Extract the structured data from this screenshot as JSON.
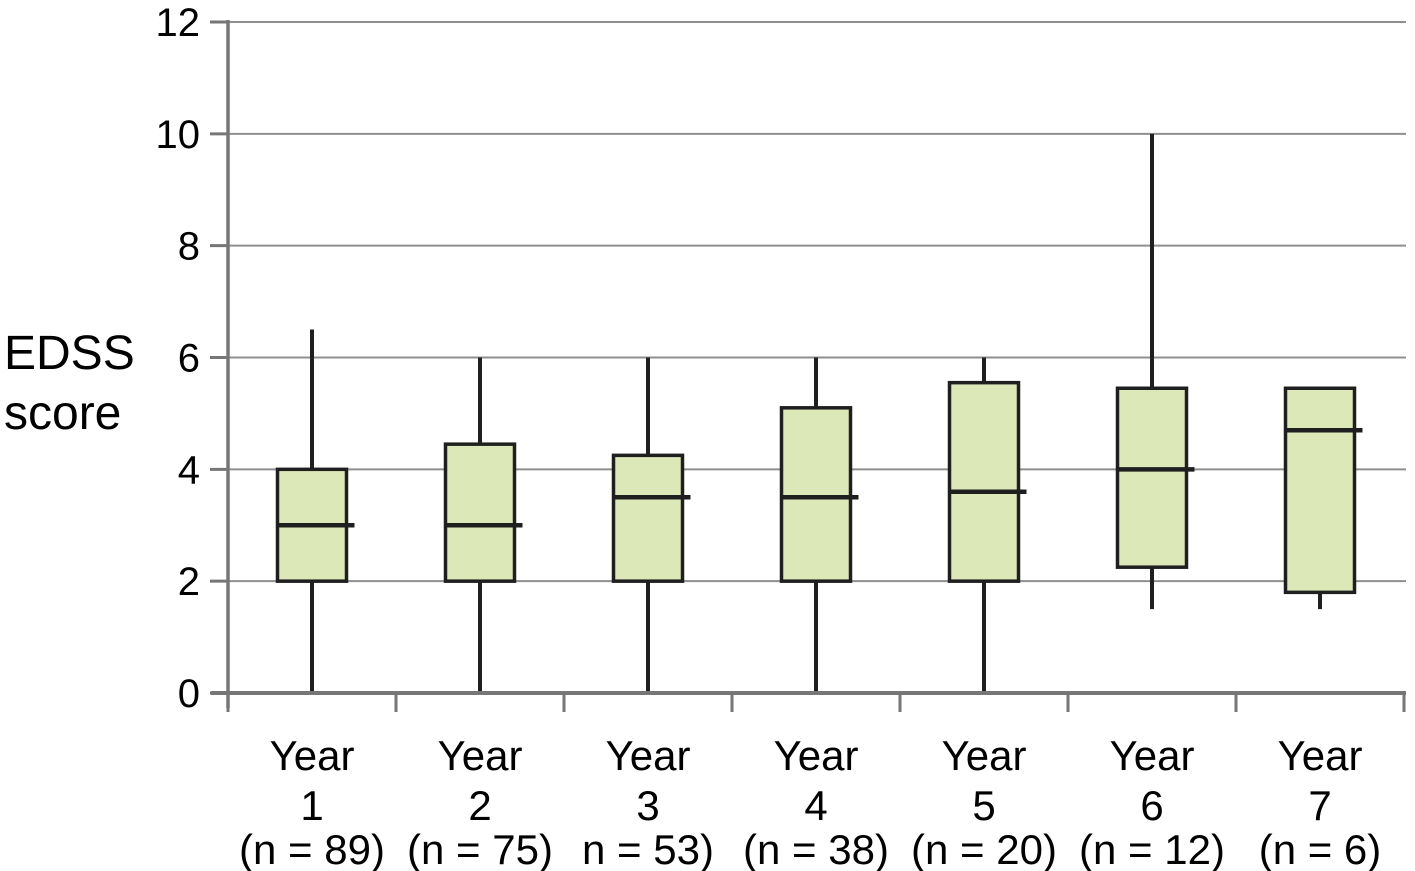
{
  "chart_data": {
    "type": "boxplot",
    "title": "",
    "ylabel": "EDSS score",
    "ylabel_line1": "EDSS",
    "ylabel_line2": "score",
    "xlabel": "",
    "ylim": [
      0,
      12
    ],
    "yticks": [
      0,
      2,
      4,
      6,
      8,
      10,
      12
    ],
    "grid": "horizontal",
    "legend": "none",
    "categories": [
      {
        "line1": "Year",
        "line2": "1",
        "line3": "(n = 89)"
      },
      {
        "line1": "Year",
        "line2": "2",
        "line3": "(n = 75)"
      },
      {
        "line1": "Year",
        "line2": "3",
        "line3": "n = 53)"
      },
      {
        "line1": "Year",
        "line2": "4",
        "line3": "(n = 38)"
      },
      {
        "line1": "Year",
        "line2": "5",
        "line3": "(n = 20)"
      },
      {
        "line1": "Year",
        "line2": "6",
        "line3": "(n = 12)"
      },
      {
        "line1": "Year",
        "line2": "7",
        "line3": "(n = 6)"
      }
    ],
    "boxes": [
      {
        "label": "Year 1",
        "n": 89,
        "whisker_low": 0,
        "q1": 2.0,
        "median": 3.0,
        "q3": 4.0,
        "whisker_high": 6.5
      },
      {
        "label": "Year 2",
        "n": 75,
        "whisker_low": 0,
        "q1": 2.0,
        "median": 3.0,
        "q3": 4.45,
        "whisker_high": 6.0
      },
      {
        "label": "Year 3",
        "n": 53,
        "whisker_low": 0,
        "q1": 2.0,
        "median": 3.5,
        "q3": 4.25,
        "whisker_high": 6.0
      },
      {
        "label": "Year 4",
        "n": 38,
        "whisker_low": 0,
        "q1": 2.0,
        "median": 3.5,
        "q3": 5.1,
        "whisker_high": 6.0
      },
      {
        "label": "Year 5",
        "n": 20,
        "whisker_low": 0,
        "q1": 2.0,
        "median": 3.6,
        "q3": 5.55,
        "whisker_high": 6.0
      },
      {
        "label": "Year 6",
        "n": 12,
        "whisker_low": 1.5,
        "q1": 2.25,
        "median": 4.0,
        "q3": 5.45,
        "whisker_high": 10.0
      },
      {
        "label": "Year 7",
        "n": 6,
        "whisker_low": 1.5,
        "q1": 1.8,
        "median": 4.7,
        "q3": 5.45,
        "whisker_high": null
      }
    ],
    "colors": {
      "background": "#ffffff",
      "box_fill": "#dde8b9",
      "box_border": "#1f1f1f",
      "median_line": "#1f1f1f",
      "whisker": "#1f1f1f",
      "gridline": "#8f8f8f",
      "axis": "#767676",
      "text": "#000000"
    }
  }
}
